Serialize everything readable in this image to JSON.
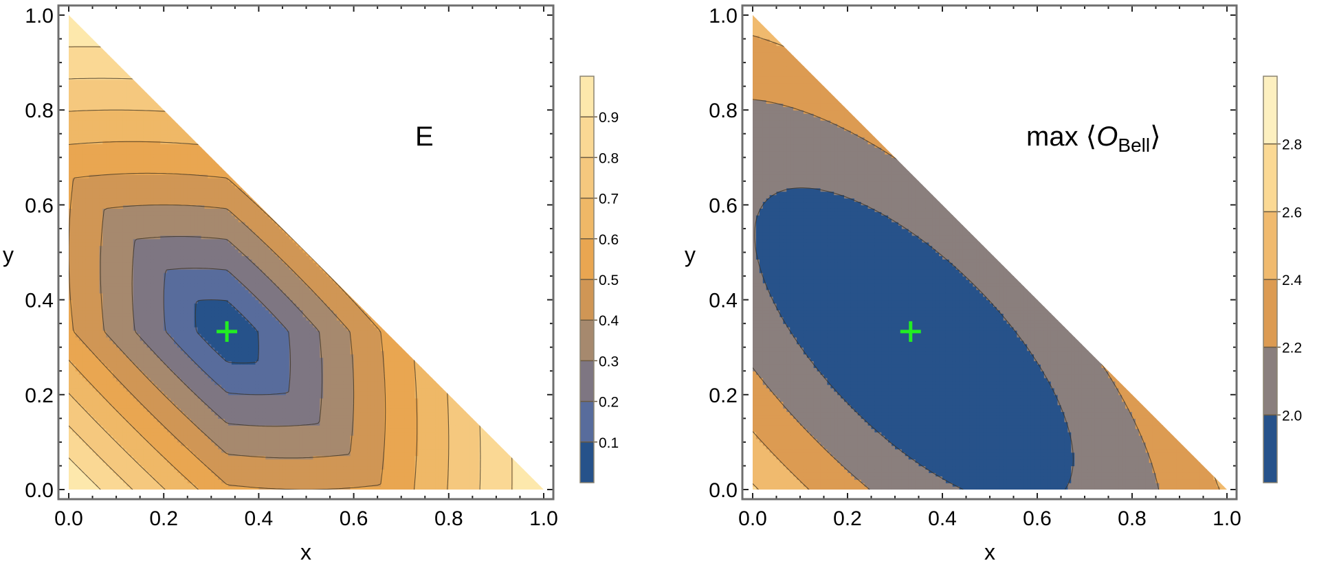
{
  "chart_data": [
    {
      "type": "heatmap",
      "subtype": "filled-contour",
      "title": "E",
      "xlabel": "x",
      "ylabel": "y",
      "xlim": [
        0,
        1
      ],
      "ylim": [
        0,
        1
      ],
      "domain": "triangle x + y <= 1",
      "x_ticks": [
        "0.0",
        "0.2",
        "0.4",
        "0.6",
        "0.8",
        "1.0"
      ],
      "y_ticks": [
        "0.0",
        "0.2",
        "0.4",
        "0.6",
        "0.8",
        "1.0"
      ],
      "colorbar": {
        "levels": [
          0.1,
          0.2,
          0.3,
          0.4,
          0.5,
          0.6,
          0.7,
          0.8,
          0.9
        ],
        "tick_labels": [
          "0.1",
          "0.2",
          "0.3",
          "0.4",
          "0.5",
          "0.6",
          "0.7",
          "0.8",
          "0.9"
        ],
        "range": [
          0,
          1
        ],
        "colors": [
          "#26528a",
          "#586c9c",
          "#7e7682",
          "#a6896e",
          "#d09655",
          "#e9a651",
          "#efb867",
          "#f5c87e",
          "#fad894",
          "#fde8ac"
        ]
      },
      "minimum_marker": {
        "x": 0.333,
        "y": 0.333,
        "symbol": "+",
        "color": "#22ee22"
      }
    },
    {
      "type": "heatmap",
      "subtype": "filled-contour",
      "title": "max ⟨O_Bell⟩",
      "title_main": "max ⟨",
      "title_italic": "O",
      "title_sub": "Bell",
      "title_close": "⟩",
      "xlabel": "x",
      "ylabel": "y",
      "xlim": [
        0,
        1
      ],
      "ylim": [
        0,
        1
      ],
      "domain": "triangle x + y <= 1",
      "x_ticks": [
        "0.0",
        "0.2",
        "0.4",
        "0.6",
        "0.8",
        "1.0"
      ],
      "y_ticks": [
        "0.0",
        "0.2",
        "0.4",
        "0.6",
        "0.8",
        "1.0"
      ],
      "colorbar": {
        "levels": [
          2.0,
          2.2,
          2.4,
          2.6,
          2.8
        ],
        "tick_labels": [
          "2.0",
          "2.2",
          "2.4",
          "2.6",
          "2.8"
        ],
        "range": [
          1.8,
          3.0
        ],
        "colors": [
          "#27528a",
          "#8a7f7d",
          "#dc9b52",
          "#f0ba6e",
          "#fbd994",
          "#fdf0c0"
        ]
      },
      "maximum_marker": {
        "x": 0.333,
        "y": 0.333,
        "symbol": "+",
        "color": "#22ee22"
      }
    }
  ]
}
